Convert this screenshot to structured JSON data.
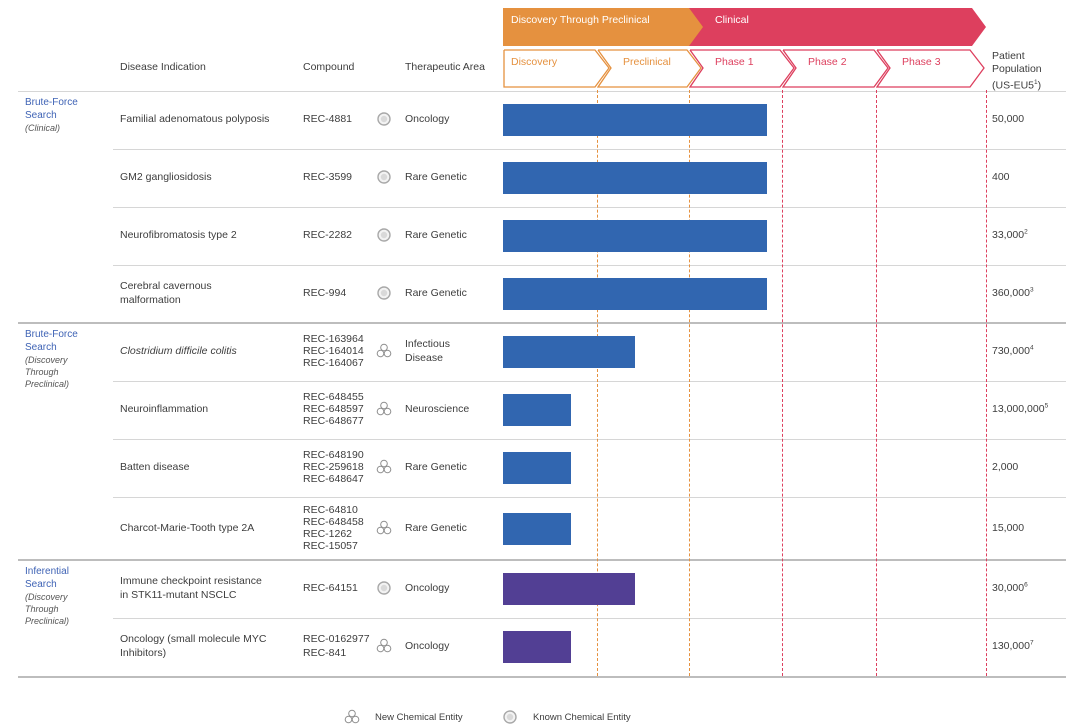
{
  "headers": {
    "disease": "Disease Indication",
    "compound": "Compound",
    "area": "Therapeutic Area",
    "population_lines": [
      "Patient",
      "Population",
      "(US-EU5"
    ],
    "population_sup": "1",
    "population_close": ")"
  },
  "stage_groups": [
    {
      "label": "Discovery Through Preclinical",
      "color": "#e5913f"
    },
    {
      "label": "Clinical",
      "color": "#dd3f5e"
    }
  ],
  "phases": [
    {
      "label": "Discovery",
      "color": "#e5913f"
    },
    {
      "label": "Preclinical",
      "color": "#e5913f"
    },
    {
      "label": "Phase 1",
      "color": "#dd3f5e"
    },
    {
      "label": "Phase 2",
      "color": "#dd3f5e"
    },
    {
      "label": "Phase 3",
      "color": "#dd3f5e"
    }
  ],
  "groups": [
    {
      "title_lines": [
        "Brute-Force",
        "Search"
      ],
      "sub_lines": [
        "(Clinical)"
      ]
    },
    {
      "title_lines": [
        "Brute-Force",
        "Search"
      ],
      "sub_lines": [
        "(Discovery",
        "Through",
        "Preclinical)"
      ]
    },
    {
      "title_lines": [
        "Inferential",
        "Search"
      ],
      "sub_lines": [
        "(Discovery",
        "Through",
        "Preclinical)"
      ]
    }
  ],
  "rows": [
    {
      "disease_lines": [
        "Familial adenomatous polyposis"
      ],
      "compounds": [
        "REC-4881"
      ],
      "entity": "known",
      "area_lines": [
        "Oncology"
      ],
      "pop": "50,000",
      "pop_sup": "",
      "progress_pct": 54.7,
      "bar_color": "#3166b0"
    },
    {
      "disease_lines": [
        "GM2 gangliosidosis"
      ],
      "compounds": [
        "REC-3599"
      ],
      "entity": "known",
      "area_lines": [
        "Rare Genetic"
      ],
      "pop": "400",
      "pop_sup": "",
      "progress_pct": 54.7,
      "bar_color": "#3166b0"
    },
    {
      "disease_lines": [
        "Neurofibromatosis type 2"
      ],
      "compounds": [
        "REC-2282"
      ],
      "entity": "known",
      "area_lines": [
        "Rare Genetic"
      ],
      "pop": "33,000",
      "pop_sup": "2",
      "progress_pct": 54.7,
      "bar_color": "#3166b0"
    },
    {
      "disease_lines": [
        "Cerebral cavernous",
        "malformation"
      ],
      "compounds": [
        "REC-994"
      ],
      "entity": "known",
      "area_lines": [
        "Rare Genetic"
      ],
      "pop": "360,000",
      "pop_sup": "3",
      "progress_pct": 54.7,
      "bar_color": "#3166b0"
    },
    {
      "disease_lines": [
        "Clostridium difficile colitis"
      ],
      "compounds": [
        "REC-163964",
        "REC-164014",
        "REC-164067"
      ],
      "entity": "new",
      "area_lines": [
        "Infectious",
        "Disease"
      ],
      "pop": "730,000",
      "pop_sup": "4",
      "progress_pct": 27.4,
      "bar_color": "#3166b0"
    },
    {
      "disease_lines": [
        "Neuroinflammation"
      ],
      "compounds": [
        "REC-648455",
        "REC-648597",
        "REC-648677"
      ],
      "entity": "new",
      "area_lines": [
        "Neuroscience"
      ],
      "pop": "13,000,000",
      "pop_sup": "5",
      "progress_pct": 14.0,
      "bar_color": "#3166b0"
    },
    {
      "disease_lines": [
        "Batten disease"
      ],
      "compounds": [
        "REC-648190",
        "REC-259618",
        "REC-648647"
      ],
      "entity": "new",
      "area_lines": [
        "Rare Genetic"
      ],
      "pop": "2,000",
      "pop_sup": "",
      "progress_pct": 14.0,
      "bar_color": "#3166b0"
    },
    {
      "disease_lines": [
        "Charcot-Marie-Tooth type 2A"
      ],
      "compounds": [
        "REC-64810",
        "REC-648458",
        "REC-1262",
        "REC-15057"
      ],
      "entity": "new",
      "area_lines": [
        "Rare Genetic"
      ],
      "pop": "15,000",
      "pop_sup": "",
      "progress_pct": 14.0,
      "bar_color": "#3166b0"
    },
    {
      "disease_lines": [
        "Immune checkpoint resistance",
        "in STK11-mutant NSCLC"
      ],
      "compounds": [
        "REC-64151"
      ],
      "entity": "known",
      "area_lines": [
        "Oncology"
      ],
      "pop": "30,000",
      "pop_sup": "6",
      "progress_pct": 27.4,
      "bar_color": "#523f94"
    },
    {
      "disease_lines": [
        "Oncology (small molecule MYC",
        "Inhibitors)"
      ],
      "compounds": [
        "REC-0162977",
        "REC-841"
      ],
      "entity": "new",
      "area_lines": [
        "Oncology"
      ],
      "pop": "130,000",
      "pop_sup": "7",
      "progress_pct": 14.0,
      "bar_color": "#523f94"
    }
  ],
  "legend": {
    "new": "New Chemical Entity",
    "known": "Known Chemical Entity"
  },
  "icons": {
    "new": "new-chemical-entity-icon",
    "known": "known-chemical-entity-icon"
  }
}
